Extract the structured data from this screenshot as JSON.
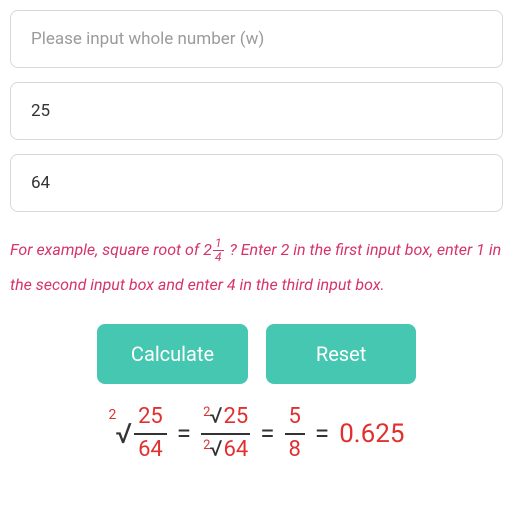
{
  "inputs": {
    "whole_placeholder": "Please input whole number (w)",
    "numerator_value": "25",
    "denominator_value": "64"
  },
  "example": {
    "prefix": "For example, square root of 2",
    "frac_num": "1",
    "frac_den": "4",
    "suffix": "? Enter 2 in the first input box, enter 1 in the second input box and enter 4 in the third input box."
  },
  "buttons": {
    "calculate": "Calculate",
    "reset": "Reset"
  },
  "result": {
    "root_index": "2",
    "surd": "√",
    "step1": {
      "num": "25",
      "den": "64"
    },
    "step2": {
      "idx_top": "2",
      "val_top": "25",
      "idx_bot": "2",
      "val_bot": "64"
    },
    "step3": {
      "num": "5",
      "den": "8"
    },
    "decimal": "0.625",
    "eq": "="
  },
  "colors": {
    "accent": "#46c7b1",
    "hint": "#d6336c",
    "emph": "#e03131",
    "border": "#d8d8d8",
    "text": "#333333"
  }
}
